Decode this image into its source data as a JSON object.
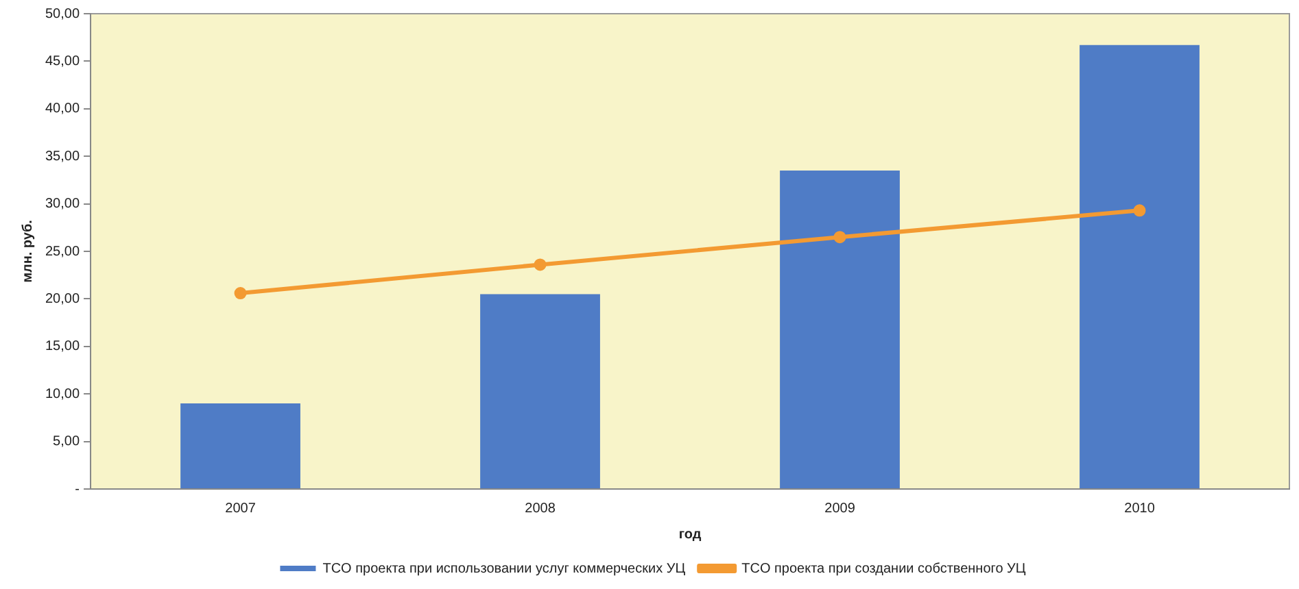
{
  "chart_data": {
    "type": "bar",
    "xlabel": "год",
    "ylabel": "млн. руб.",
    "categories": [
      "2007",
      "2008",
      "2009",
      "2010"
    ],
    "series": [
      {
        "name": "TCO проекта при использовании услуг коммерческих УЦ",
        "color": "#4f7cc6",
        "values": [
          9.0,
          20.5,
          33.5,
          46.7
        ]
      },
      {
        "name": "TCO проекта при создании собственного УЦ",
        "type": "line",
        "color": "#f39a32",
        "values": [
          20.6,
          23.6,
          26.5,
          29.3
        ]
      }
    ],
    "ylim": [
      0,
      50
    ],
    "yticks": [
      {
        "value": 0,
        "label": "-"
      },
      {
        "value": 5,
        "label": "5,00"
      },
      {
        "value": 10,
        "label": "10,00"
      },
      {
        "value": 15,
        "label": "15,00"
      },
      {
        "value": 20,
        "label": "20,00"
      },
      {
        "value": 25,
        "label": "25,00"
      },
      {
        "value": 30,
        "label": "30,00"
      },
      {
        "value": 35,
        "label": "35,00"
      },
      {
        "value": 40,
        "label": "40,00"
      },
      {
        "value": 45,
        "label": "45,00"
      },
      {
        "value": 50,
        "label": "50,00"
      }
    ],
    "grid": false,
    "legend": "bottom",
    "marker": "circle"
  }
}
